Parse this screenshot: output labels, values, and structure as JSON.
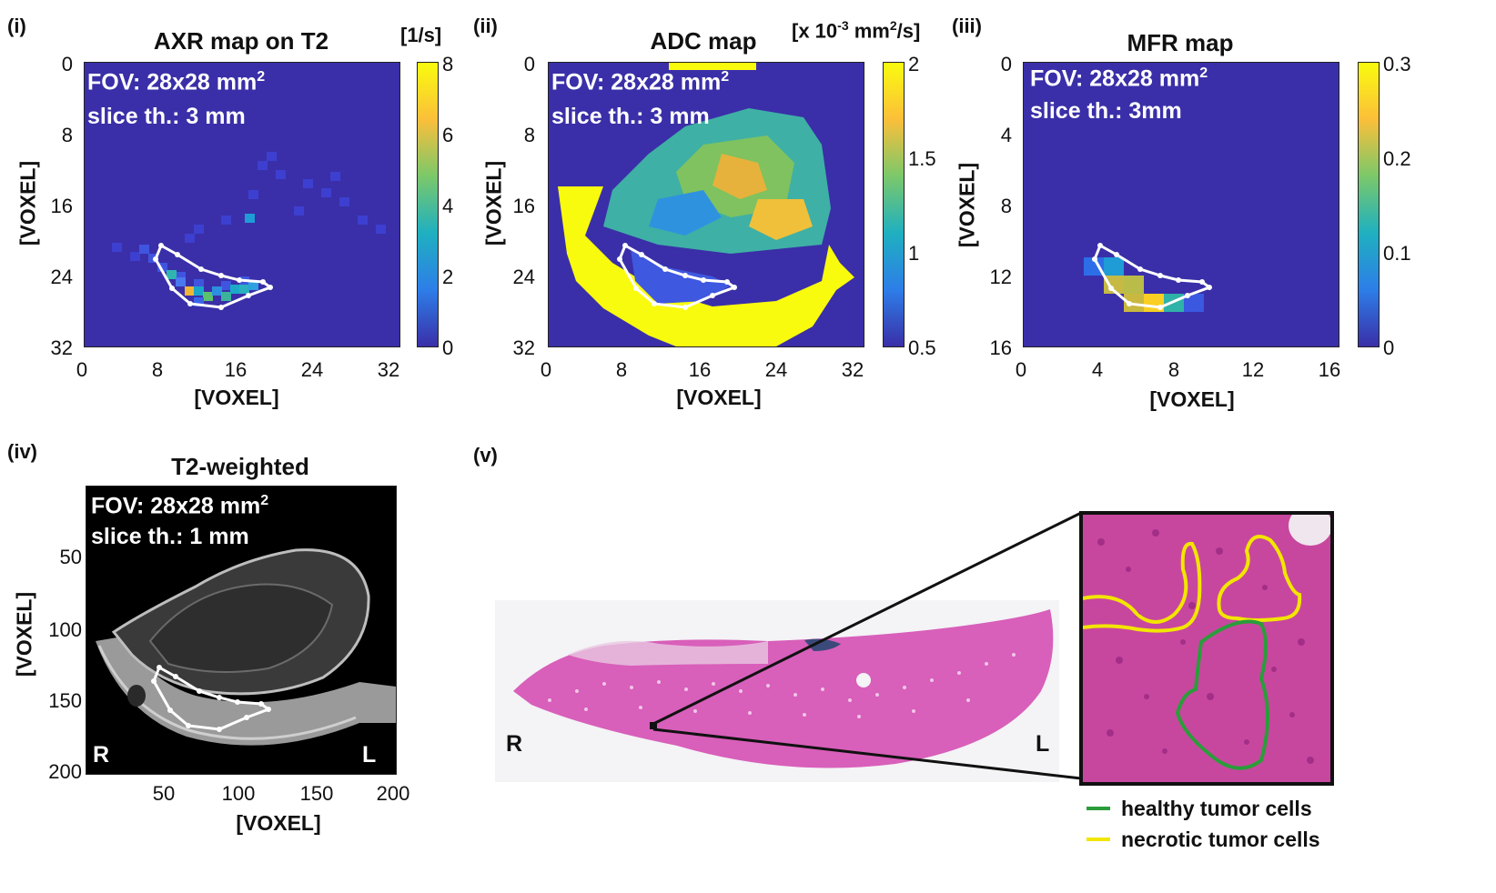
{
  "panels": {
    "i": {
      "label": "(i)",
      "title": "AXR map on T2",
      "unit": "[1/s]",
      "fov": "FOV: 28x28 mm",
      "fov_sup": "2",
      "slice": "slice th.: 3 mm",
      "xticks": [
        "0",
        "8",
        "16",
        "24",
        "32"
      ],
      "yticks": [
        "0",
        "8",
        "16",
        "24",
        "32"
      ],
      "cbar_ticks": [
        "8",
        "6",
        "4",
        "2",
        "0"
      ],
      "xlabel": "[VOXEL]",
      "ylabel": "[VOXEL]"
    },
    "ii": {
      "label": "(ii)",
      "title": "ADC map",
      "unit_pre": "[x 10",
      "unit_sup1": "-3",
      "unit_mid": " mm",
      "unit_sup2": "2",
      "unit_post": "/s]",
      "fov": "FOV: 28x28 mm",
      "fov_sup": "2",
      "slice": "slice th.: 3 mm",
      "xticks": [
        "0",
        "8",
        "16",
        "24",
        "32"
      ],
      "yticks": [
        "0",
        "8",
        "16",
        "24",
        "32"
      ],
      "cbar_ticks": [
        "2",
        "1.5",
        "1",
        "0.5"
      ],
      "xlabel": "[VOXEL]",
      "ylabel": "[VOXEL]"
    },
    "iii": {
      "label": "(iii)",
      "title": "MFR map",
      "fov": "FOV: 28x28 mm",
      "fov_sup": "2",
      "slice": "slice th.: 3mm",
      "xticks": [
        "0",
        "4",
        "8",
        "12",
        "16"
      ],
      "yticks": [
        "0",
        "4",
        "8",
        "12",
        "16"
      ],
      "cbar_ticks": [
        "0.3",
        "0.2",
        "0.1",
        "0"
      ],
      "xlabel": "[VOXEL]",
      "ylabel": "[VOXEL]"
    },
    "iv": {
      "label": "(iv)",
      "title": "T2-weighted",
      "fov": "FOV: 28x28 mm",
      "fov_sup": "2",
      "slice": "slice th.: 1 mm",
      "xticks": [
        "50",
        "100",
        "150",
        "200"
      ],
      "yticks": [
        "50",
        "100",
        "150",
        "200"
      ],
      "side_left": "R",
      "side_right": "L",
      "xlabel": "[VOXEL]",
      "ylabel": "[VOXEL]"
    },
    "v": {
      "label": "(v)",
      "side_left": "R",
      "side_right": "L",
      "legend": [
        {
          "label": "healthy tumor cells",
          "color": "#2a9d3a"
        },
        {
          "label": "necrotic tumor cells",
          "color": "#f2e600"
        }
      ]
    }
  },
  "colors": {
    "map_bg": "#3a2fa8",
    "parula_low": "#352a87",
    "parula_high": "#f9fb0e",
    "roi": "#ffffff",
    "tissue": "#d24fb2"
  }
}
